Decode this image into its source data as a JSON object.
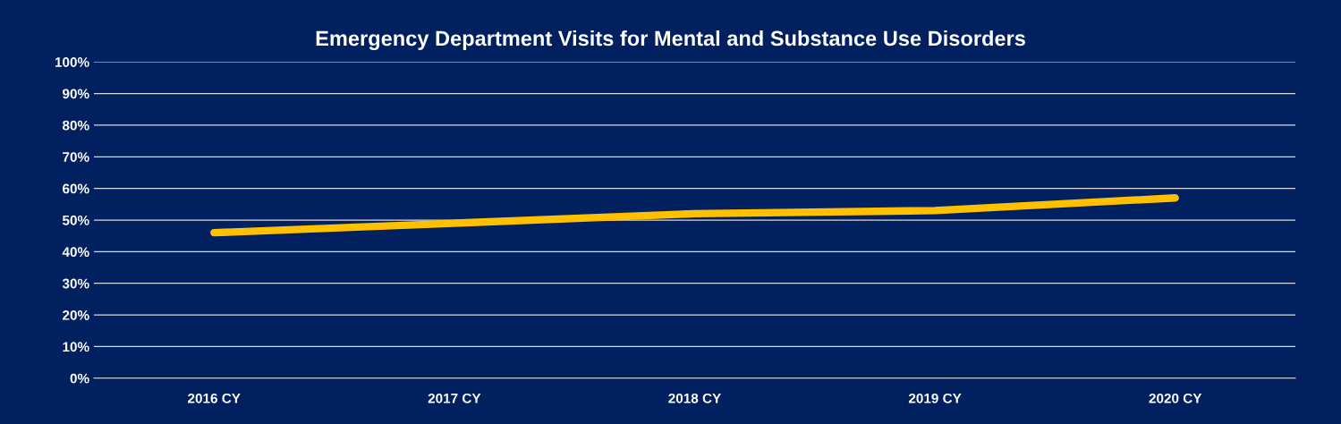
{
  "chart_data": {
    "type": "line",
    "title": "Emergency Department Visits for Mental and Substance Use Disorders",
    "categories": [
      "2016 CY",
      "2017 CY",
      "2018 CY",
      "2019 CY",
      "2020 CY"
    ],
    "series": [
      {
        "color": "#ffc000",
        "values": [
          46,
          49,
          52,
          53,
          57
        ]
      }
    ],
    "ylim": [
      0,
      100
    ],
    "yticks": [
      {
        "value": 0,
        "label": "0%"
      },
      {
        "value": 10,
        "label": "10%"
      },
      {
        "value": 20,
        "label": "20%"
      },
      {
        "value": 30,
        "label": "30%"
      },
      {
        "value": 40,
        "label": "40%"
      },
      {
        "value": 50,
        "label": "50%"
      },
      {
        "value": 60,
        "label": "60%"
      },
      {
        "value": 70,
        "label": "70%"
      },
      {
        "value": 80,
        "label": "80%"
      },
      {
        "value": 90,
        "label": "90%"
      },
      {
        "value": 100,
        "label": "100%"
      }
    ],
    "grid": "y",
    "marker": "none",
    "line_style": "solid"
  }
}
